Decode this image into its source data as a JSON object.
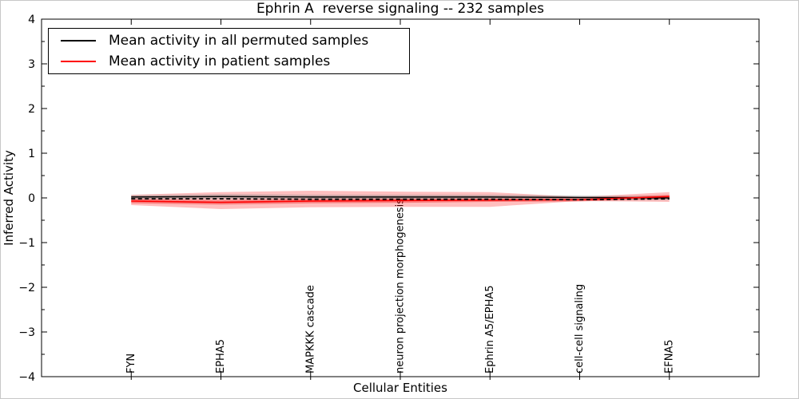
{
  "chart_data": {
    "type": "line",
    "title": "Ephrin A  reverse signaling -- 232 samples",
    "xlabel": "Cellular Entities",
    "ylabel": "Inferred Activity",
    "ylim": [
      -4,
      4
    ],
    "yticks": [
      -4,
      -3,
      -2,
      -1,
      0,
      1,
      2,
      3,
      4
    ],
    "ytick_minor_step": 0.5,
    "grid": false,
    "legend_position": "upper left",
    "categories": [
      "FYN",
      "EPHA5",
      "MAPKKK cascade",
      "neuron projection morphogenesis",
      "Ephrin A5/EPHA5",
      "cell-cell signaling",
      "EFNA5"
    ],
    "series": [
      {
        "id": "permuted-mean",
        "legend": "Mean activity in all permuted samples",
        "color": "#000000",
        "dash": "solid",
        "width": 1.4,
        "values": [
          0.02,
          0.03,
          0.02,
          0.02,
          0.02,
          0.01,
          0.0
        ]
      },
      {
        "id": "patient-mean",
        "legend": "Mean activity in patient samples",
        "color": "#ff0000",
        "dash": "solid",
        "width": 1.6,
        "values": [
          -0.07,
          -0.1,
          -0.07,
          -0.06,
          -0.05,
          -0.04,
          0.03
        ]
      },
      {
        "id": "overlay-dashed",
        "legend": null,
        "color": "#000000",
        "dash": "dashed",
        "width": 1.8,
        "values": [
          -0.02,
          -0.02,
          -0.03,
          -0.03,
          -0.03,
          -0.04,
          -0.02
        ]
      }
    ],
    "bands": [
      {
        "id": "patient-std-outer",
        "color": "#ff0000",
        "opacity": 0.25,
        "upper": [
          0.07,
          0.13,
          0.16,
          0.14,
          0.13,
          0.02,
          0.13
        ],
        "lower": [
          -0.16,
          -0.25,
          -0.21,
          -0.2,
          -0.2,
          -0.07,
          -0.09
        ]
      },
      {
        "id": "patient-std-inner",
        "color": "#ee2222",
        "opacity": 0.4,
        "upper": [
          -0.02,
          -0.05,
          -0.02,
          -0.01,
          -0.01,
          0.0,
          0.07
        ],
        "lower": [
          -0.12,
          -0.15,
          -0.12,
          -0.11,
          -0.09,
          -0.08,
          -0.02
        ]
      },
      {
        "id": "permuted-std",
        "color": "#888888",
        "opacity": 0.45,
        "upper": [
          0.06,
          0.08,
          0.07,
          0.07,
          0.07,
          0.05,
          0.04
        ],
        "lower": [
          -0.03,
          -0.02,
          -0.03,
          -0.03,
          -0.03,
          -0.04,
          -0.05
        ]
      }
    ]
  },
  "legend": {
    "items": [
      {
        "label": "Mean activity in all permuted samples",
        "color": "#000000"
      },
      {
        "label": "Mean activity in patient samples",
        "color": "#ff0000"
      }
    ]
  }
}
